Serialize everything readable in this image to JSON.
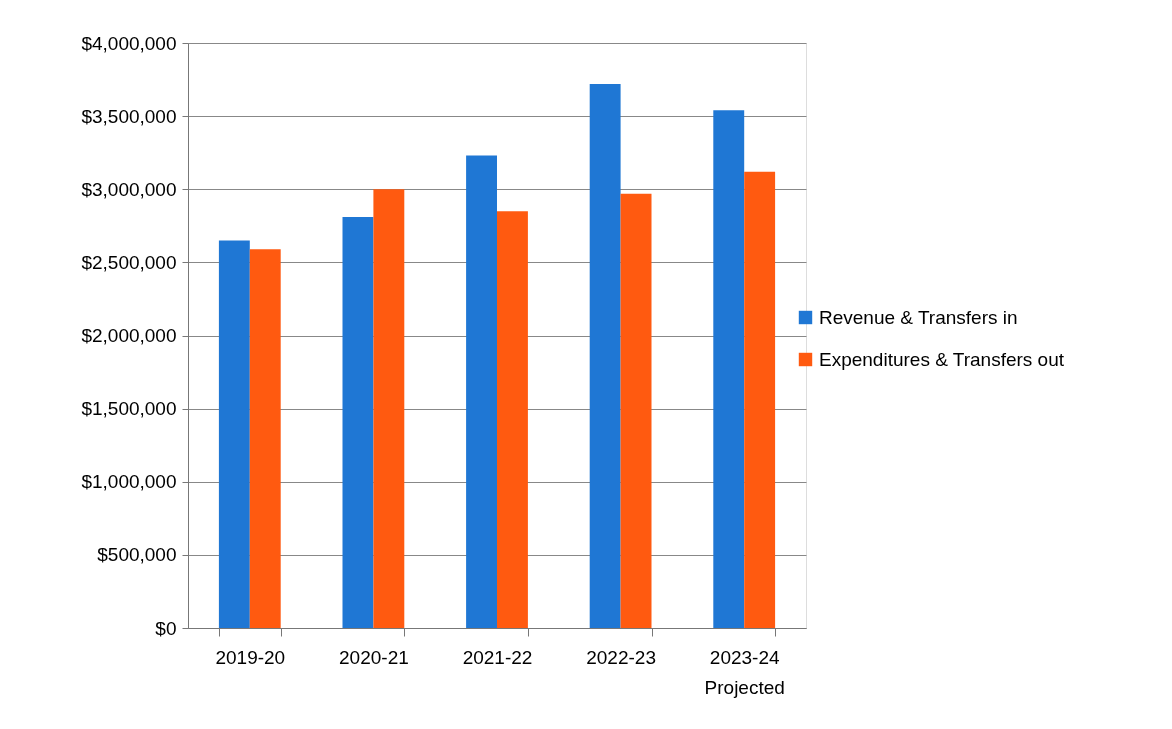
{
  "chart_data": {
    "type": "bar",
    "categories": [
      "2019-20",
      "2020-21",
      "2021-22",
      "2022-23",
      "2023-24\nProjected"
    ],
    "series": [
      {
        "name": "Revenue & Transfers in",
        "color": "#1f77d4",
        "values": [
          2650000,
          2810000,
          3230000,
          3720000,
          3540000
        ]
      },
      {
        "name": "Expenditures & Transfers out",
        "color": "#ff5a10",
        "values": [
          2590000,
          3000000,
          2850000,
          2970000,
          3120000
        ]
      }
    ],
    "ylim": [
      0,
      4000000
    ],
    "yticks": [
      {
        "value": 0,
        "label": "$0"
      },
      {
        "value": 500000,
        "label": "$500,000"
      },
      {
        "value": 1000000,
        "label": "$1,000,000"
      },
      {
        "value": 1500000,
        "label": "$1,500,000"
      },
      {
        "value": 2000000,
        "label": "$2,000,000"
      },
      {
        "value": 2500000,
        "label": "$2,500,000"
      },
      {
        "value": 3000000,
        "label": "$3,000,000"
      },
      {
        "value": 3500000,
        "label": "$3,500,000"
      },
      {
        "value": 4000000,
        "label": "$4,000,000"
      }
    ],
    "grid": "y",
    "legend": "right"
  }
}
